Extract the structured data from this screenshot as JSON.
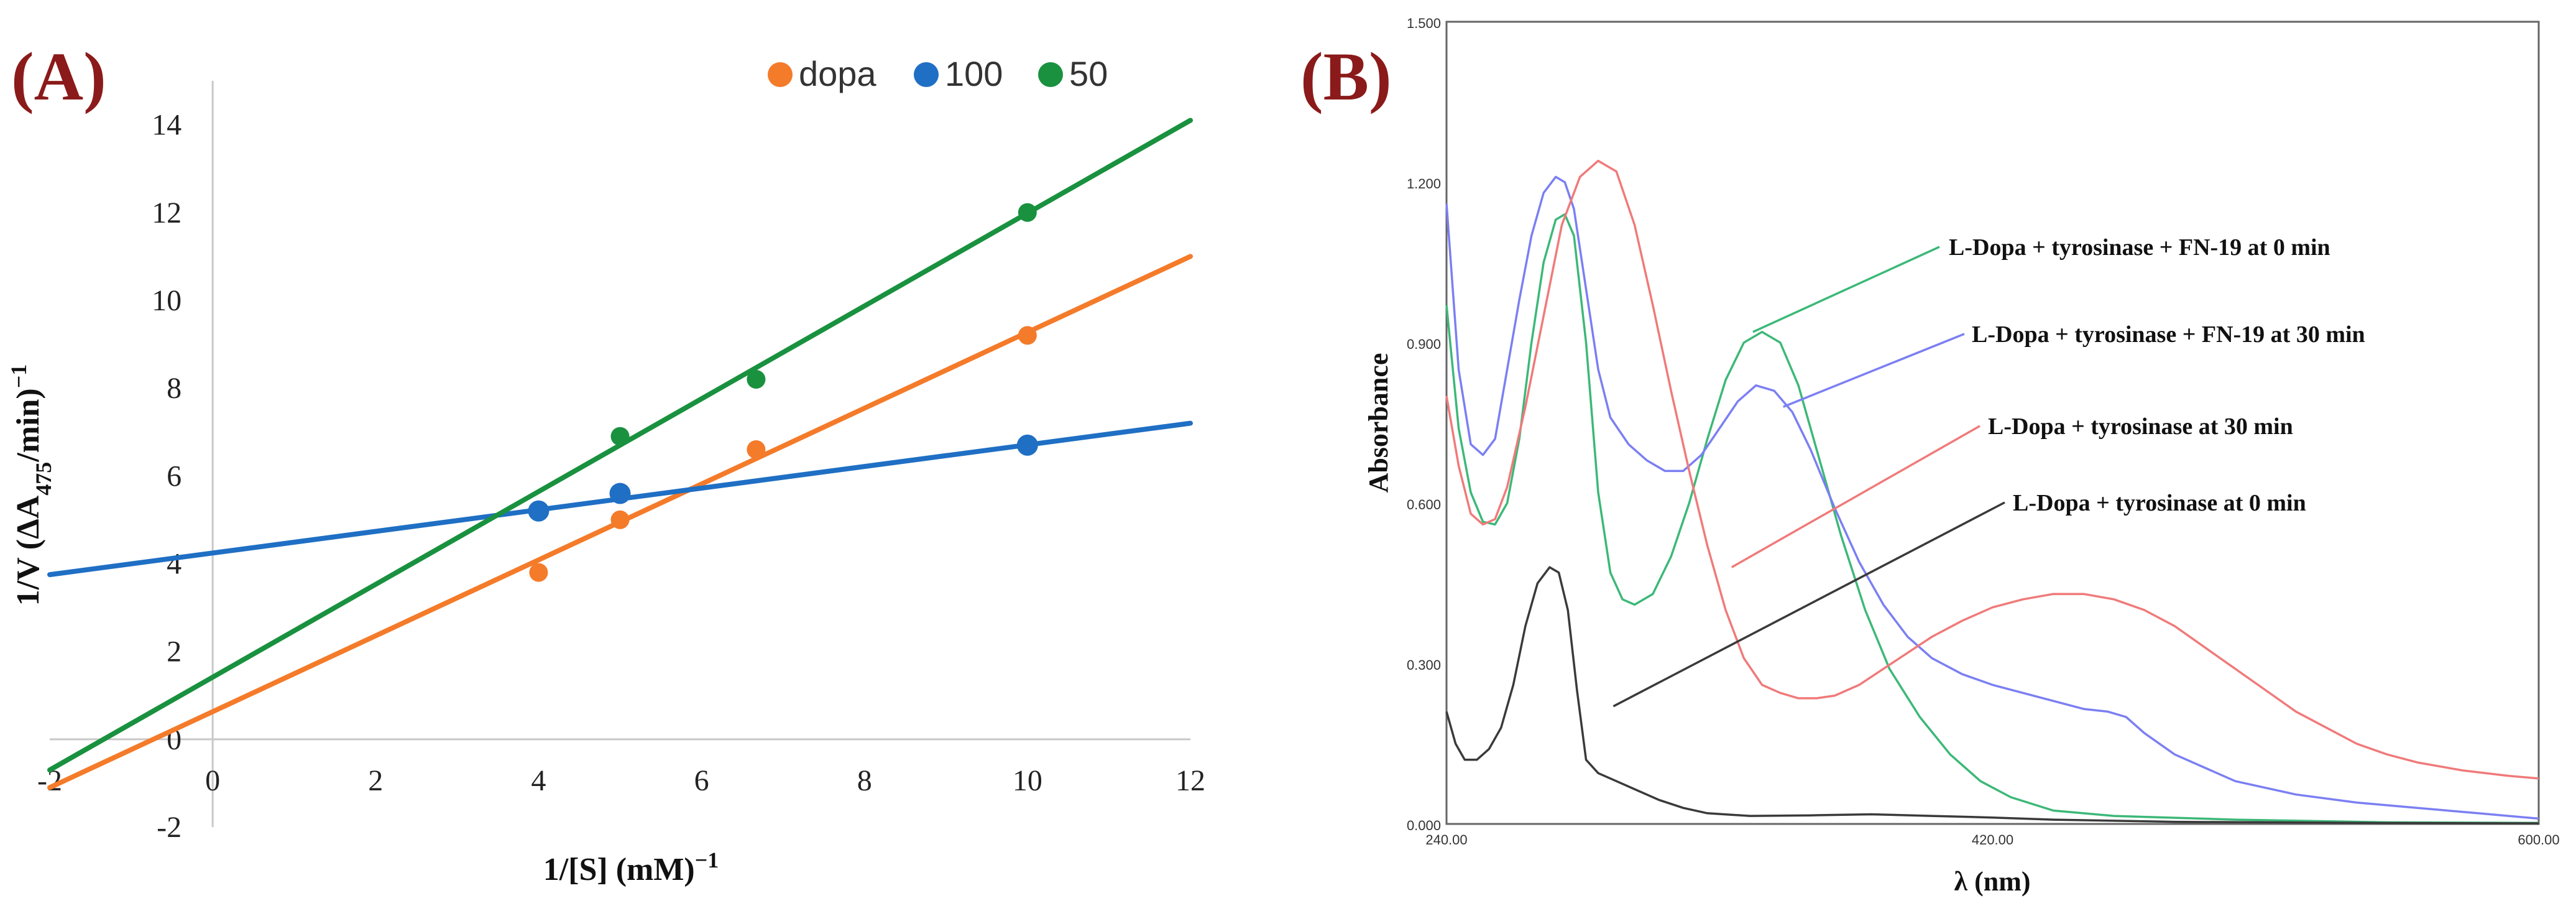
{
  "chart_data": [
    {
      "type": "scatter",
      "panel_label": "(A)",
      "title": "",
      "xlabel": "1/[S]  (mM)",
      "xlabel_sup": "−1",
      "ylabel_main": "1/V (ΔA",
      "ylabel_sub": "475",
      "ylabel_rest": "/min)",
      "ylabel_sup": "−1",
      "xlim": [
        -2,
        12
      ],
      "ylim": [
        -2,
        15
      ],
      "xticks": [
        -2,
        0,
        2,
        4,
        6,
        8,
        10,
        12
      ],
      "yticks": [
        -2,
        0,
        2,
        4,
        6,
        8,
        10,
        12,
        14
      ],
      "legend_position": "top-right",
      "series": [
        {
          "name": "dopa",
          "color": "#f47b2a",
          "points": [
            [
              4,
              3.8
            ],
            [
              5,
              5.0
            ],
            [
              6.67,
              6.6
            ],
            [
              10,
              9.2
            ]
          ],
          "fit": [
            [
              -2,
              -1.1
            ],
            [
              12,
              11.0
            ]
          ]
        },
        {
          "name": "100",
          "color": "#1f6fc4",
          "points": [
            [
              4,
              5.2
            ],
            [
              5,
              5.6
            ],
            [
              10,
              6.7
            ]
          ],
          "fit": [
            [
              -2,
              3.75
            ],
            [
              12,
              7.2
            ]
          ]
        },
        {
          "name": "50",
          "color": "#19913f",
          "points": [
            [
              5,
              6.9
            ],
            [
              6.67,
              8.2
            ],
            [
              10,
              12.0
            ]
          ],
          "fit": [
            [
              -2,
              -0.7
            ],
            [
              12,
              14.1
            ]
          ]
        }
      ]
    },
    {
      "type": "line",
      "panel_label": "(B)",
      "title": "",
      "xlabel": "λ (nm)",
      "ylabel": "Absorbance",
      "xlim": [
        240,
        600
      ],
      "ylim": [
        0,
        1.5
      ],
      "xtick_labels": [
        "240.00",
        "420.00",
        "600.00"
      ],
      "ytick_labels": [
        "0.000",
        "0.300",
        "0.600",
        "0.900",
        "1.200",
        "1.500"
      ],
      "series": [
        {
          "name": "L-Dopa + tyrosinase + FN-19 at 0 min",
          "color": "#3cb878",
          "points": [
            [
              240,
              0.97
            ],
            [
              244,
              0.74
            ],
            [
              248,
              0.62
            ],
            [
              252,
              0.565
            ],
            [
              256,
              0.56
            ],
            [
              260,
              0.6
            ],
            [
              264,
              0.72
            ],
            [
              268,
              0.9
            ],
            [
              272,
              1.05
            ],
            [
              276,
              1.13
            ],
            [
              279,
              1.14
            ],
            [
              282,
              1.1
            ],
            [
              286,
              0.9
            ],
            [
              290,
              0.62
            ],
            [
              294,
              0.47
            ],
            [
              298,
              0.42
            ],
            [
              302,
              0.41
            ],
            [
              308,
              0.43
            ],
            [
              314,
              0.5
            ],
            [
              320,
              0.6
            ],
            [
              326,
              0.72
            ],
            [
              332,
              0.83
            ],
            [
              338,
              0.9
            ],
            [
              344,
              0.92
            ],
            [
              350,
              0.9
            ],
            [
              356,
              0.82
            ],
            [
              362,
              0.7
            ],
            [
              370,
              0.54
            ],
            [
              378,
              0.4
            ],
            [
              386,
              0.29
            ],
            [
              396,
              0.2
            ],
            [
              406,
              0.13
            ],
            [
              416,
              0.08
            ],
            [
              426,
              0.05
            ],
            [
              440,
              0.025
            ],
            [
              460,
              0.015
            ],
            [
              500,
              0.008
            ],
            [
              550,
              0.003
            ],
            [
              600,
              0.002
            ]
          ]
        },
        {
          "name": "L-Dopa + tyrosinase + FN-19 at 30 min",
          "color": "#7b7ff2",
          "points": [
            [
              240,
              1.16
            ],
            [
              244,
              0.85
            ],
            [
              248,
              0.71
            ],
            [
              252,
              0.69
            ],
            [
              256,
              0.72
            ],
            [
              260,
              0.85
            ],
            [
              264,
              0.98
            ],
            [
              268,
              1.1
            ],
            [
              272,
              1.18
            ],
            [
              276,
              1.21
            ],
            [
              279,
              1.2
            ],
            [
              282,
              1.15
            ],
            [
              286,
              1.0
            ],
            [
              290,
              0.85
            ],
            [
              294,
              0.76
            ],
            [
              300,
              0.71
            ],
            [
              306,
              0.68
            ],
            [
              312,
              0.66
            ],
            [
              318,
              0.66
            ],
            [
              324,
              0.69
            ],
            [
              330,
              0.74
            ],
            [
              336,
              0.79
            ],
            [
              342,
              0.82
            ],
            [
              348,
              0.81
            ],
            [
              354,
              0.77
            ],
            [
              360,
              0.7
            ],
            [
              368,
              0.59
            ],
            [
              376,
              0.49
            ],
            [
              384,
              0.41
            ],
            [
              392,
              0.35
            ],
            [
              400,
              0.31
            ],
            [
              410,
              0.28
            ],
            [
              420,
              0.26
            ],
            [
              430,
              0.245
            ],
            [
              440,
              0.23
            ],
            [
              450,
              0.215
            ],
            [
              458,
              0.21
            ],
            [
              464,
              0.2
            ],
            [
              470,
              0.17
            ],
            [
              480,
              0.13
            ],
            [
              500,
              0.08
            ],
            [
              520,
              0.055
            ],
            [
              540,
              0.04
            ],
            [
              560,
              0.03
            ],
            [
              580,
              0.02
            ],
            [
              600,
              0.01
            ]
          ]
        },
        {
          "name": "L-Dopa + tyrosinase at 30 min",
          "color": "#f07a7a",
          "points": [
            [
              240,
              0.8
            ],
            [
              244,
              0.67
            ],
            [
              248,
              0.58
            ],
            [
              252,
              0.56
            ],
            [
              256,
              0.57
            ],
            [
              260,
              0.63
            ],
            [
              266,
              0.78
            ],
            [
              272,
              0.95
            ],
            [
              278,
              1.12
            ],
            [
              284,
              1.21
            ],
            [
              290,
              1.24
            ],
            [
              296,
              1.22
            ],
            [
              302,
              1.12
            ],
            [
              308,
              0.97
            ],
            [
              314,
              0.81
            ],
            [
              320,
              0.66
            ],
            [
              326,
              0.52
            ],
            [
              332,
              0.4
            ],
            [
              338,
              0.31
            ],
            [
              344,
              0.26
            ],
            [
              350,
              0.245
            ],
            [
              356,
              0.235
            ],
            [
              362,
              0.235
            ],
            [
              368,
              0.24
            ],
            [
              376,
              0.26
            ],
            [
              384,
              0.29
            ],
            [
              392,
              0.32
            ],
            [
              400,
              0.35
            ],
            [
              410,
              0.38
            ],
            [
              420,
              0.405
            ],
            [
              430,
              0.42
            ],
            [
              440,
              0.43
            ],
            [
              450,
              0.43
            ],
            [
              460,
              0.42
            ],
            [
              470,
              0.4
            ],
            [
              480,
              0.37
            ],
            [
              490,
              0.33
            ],
            [
              500,
              0.29
            ],
            [
              510,
              0.25
            ],
            [
              520,
              0.21
            ],
            [
              530,
              0.18
            ],
            [
              540,
              0.15
            ],
            [
              550,
              0.13
            ],
            [
              560,
              0.115
            ],
            [
              575,
              0.1
            ],
            [
              590,
              0.09
            ],
            [
              600,
              0.085
            ]
          ]
        },
        {
          "name": "L-Dopa + tyrosinase at 0 min",
          "color": "#3a3a3a",
          "points": [
            [
              240,
              0.21
            ],
            [
              243,
              0.15
            ],
            [
              246,
              0.12
            ],
            [
              250,
              0.12
            ],
            [
              254,
              0.14
            ],
            [
              258,
              0.18
            ],
            [
              262,
              0.26
            ],
            [
              266,
              0.37
            ],
            [
              270,
              0.45
            ],
            [
              274,
              0.48
            ],
            [
              277,
              0.47
            ],
            [
              280,
              0.4
            ],
            [
              283,
              0.25
            ],
            [
              286,
              0.12
            ],
            [
              290,
              0.095
            ],
            [
              296,
              0.08
            ],
            [
              302,
              0.065
            ],
            [
              310,
              0.045
            ],
            [
              318,
              0.03
            ],
            [
              326,
              0.02
            ],
            [
              340,
              0.015
            ],
            [
              360,
              0.016
            ],
            [
              380,
              0.018
            ],
            [
              400,
              0.015
            ],
            [
              420,
              0.012
            ],
            [
              440,
              0.008
            ],
            [
              480,
              0.004
            ],
            [
              540,
              0.002
            ],
            [
              600,
              0.001
            ]
          ]
        }
      ],
      "annotations": [
        {
          "text": "L-Dopa + tyrosinase + FN-19 at 0 min",
          "series": 0,
          "point": [
            341,
            0.92
          ]
        },
        {
          "text": "L-Dopa + tyrosinase + FN-19 at 30 min",
          "series": 1,
          "point": [
            351,
            0.78
          ]
        },
        {
          "text": "L-Dopa + tyrosinase at 30 min",
          "series": 2,
          "point": [
            334,
            0.48
          ]
        },
        {
          "text": "L-Dopa + tyrosinase at 0 min",
          "series": 3,
          "point": [
            295,
            0.22
          ]
        }
      ]
    }
  ]
}
